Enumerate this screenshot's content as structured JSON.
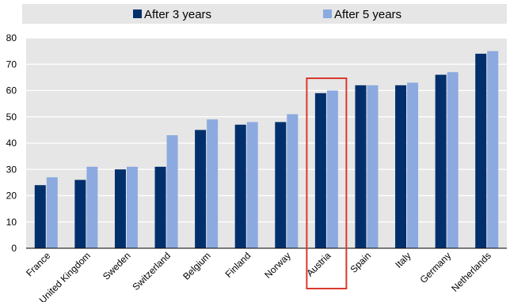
{
  "chart_data": {
    "type": "bar",
    "categories": [
      "France",
      "United Kingdom",
      "Sweden",
      "Switzerland",
      "Belgium",
      "Finland",
      "Norway",
      "Austria",
      "Spain",
      "Italy",
      "Germany",
      "Netherlands"
    ],
    "series": [
      {
        "name": "After 3 years",
        "color": "#002F6C",
        "values": [
          24,
          26,
          30,
          31,
          45,
          47,
          48,
          59,
          62,
          62,
          66,
          74
        ]
      },
      {
        "name": "After 5 years",
        "color": "#8CAADF",
        "values": [
          27,
          31,
          31,
          43,
          49,
          48,
          51,
          60,
          62,
          63,
          67,
          75
        ]
      }
    ],
    "ylim": [
      0,
      80
    ],
    "yticks": [
      0,
      10,
      20,
      30,
      40,
      50,
      60,
      70,
      80
    ],
    "grid": true,
    "legend_position": "top",
    "highlighted_category": "Austria",
    "highlight_color": "#D9392B",
    "plot_background": "#E6E6E6"
  }
}
